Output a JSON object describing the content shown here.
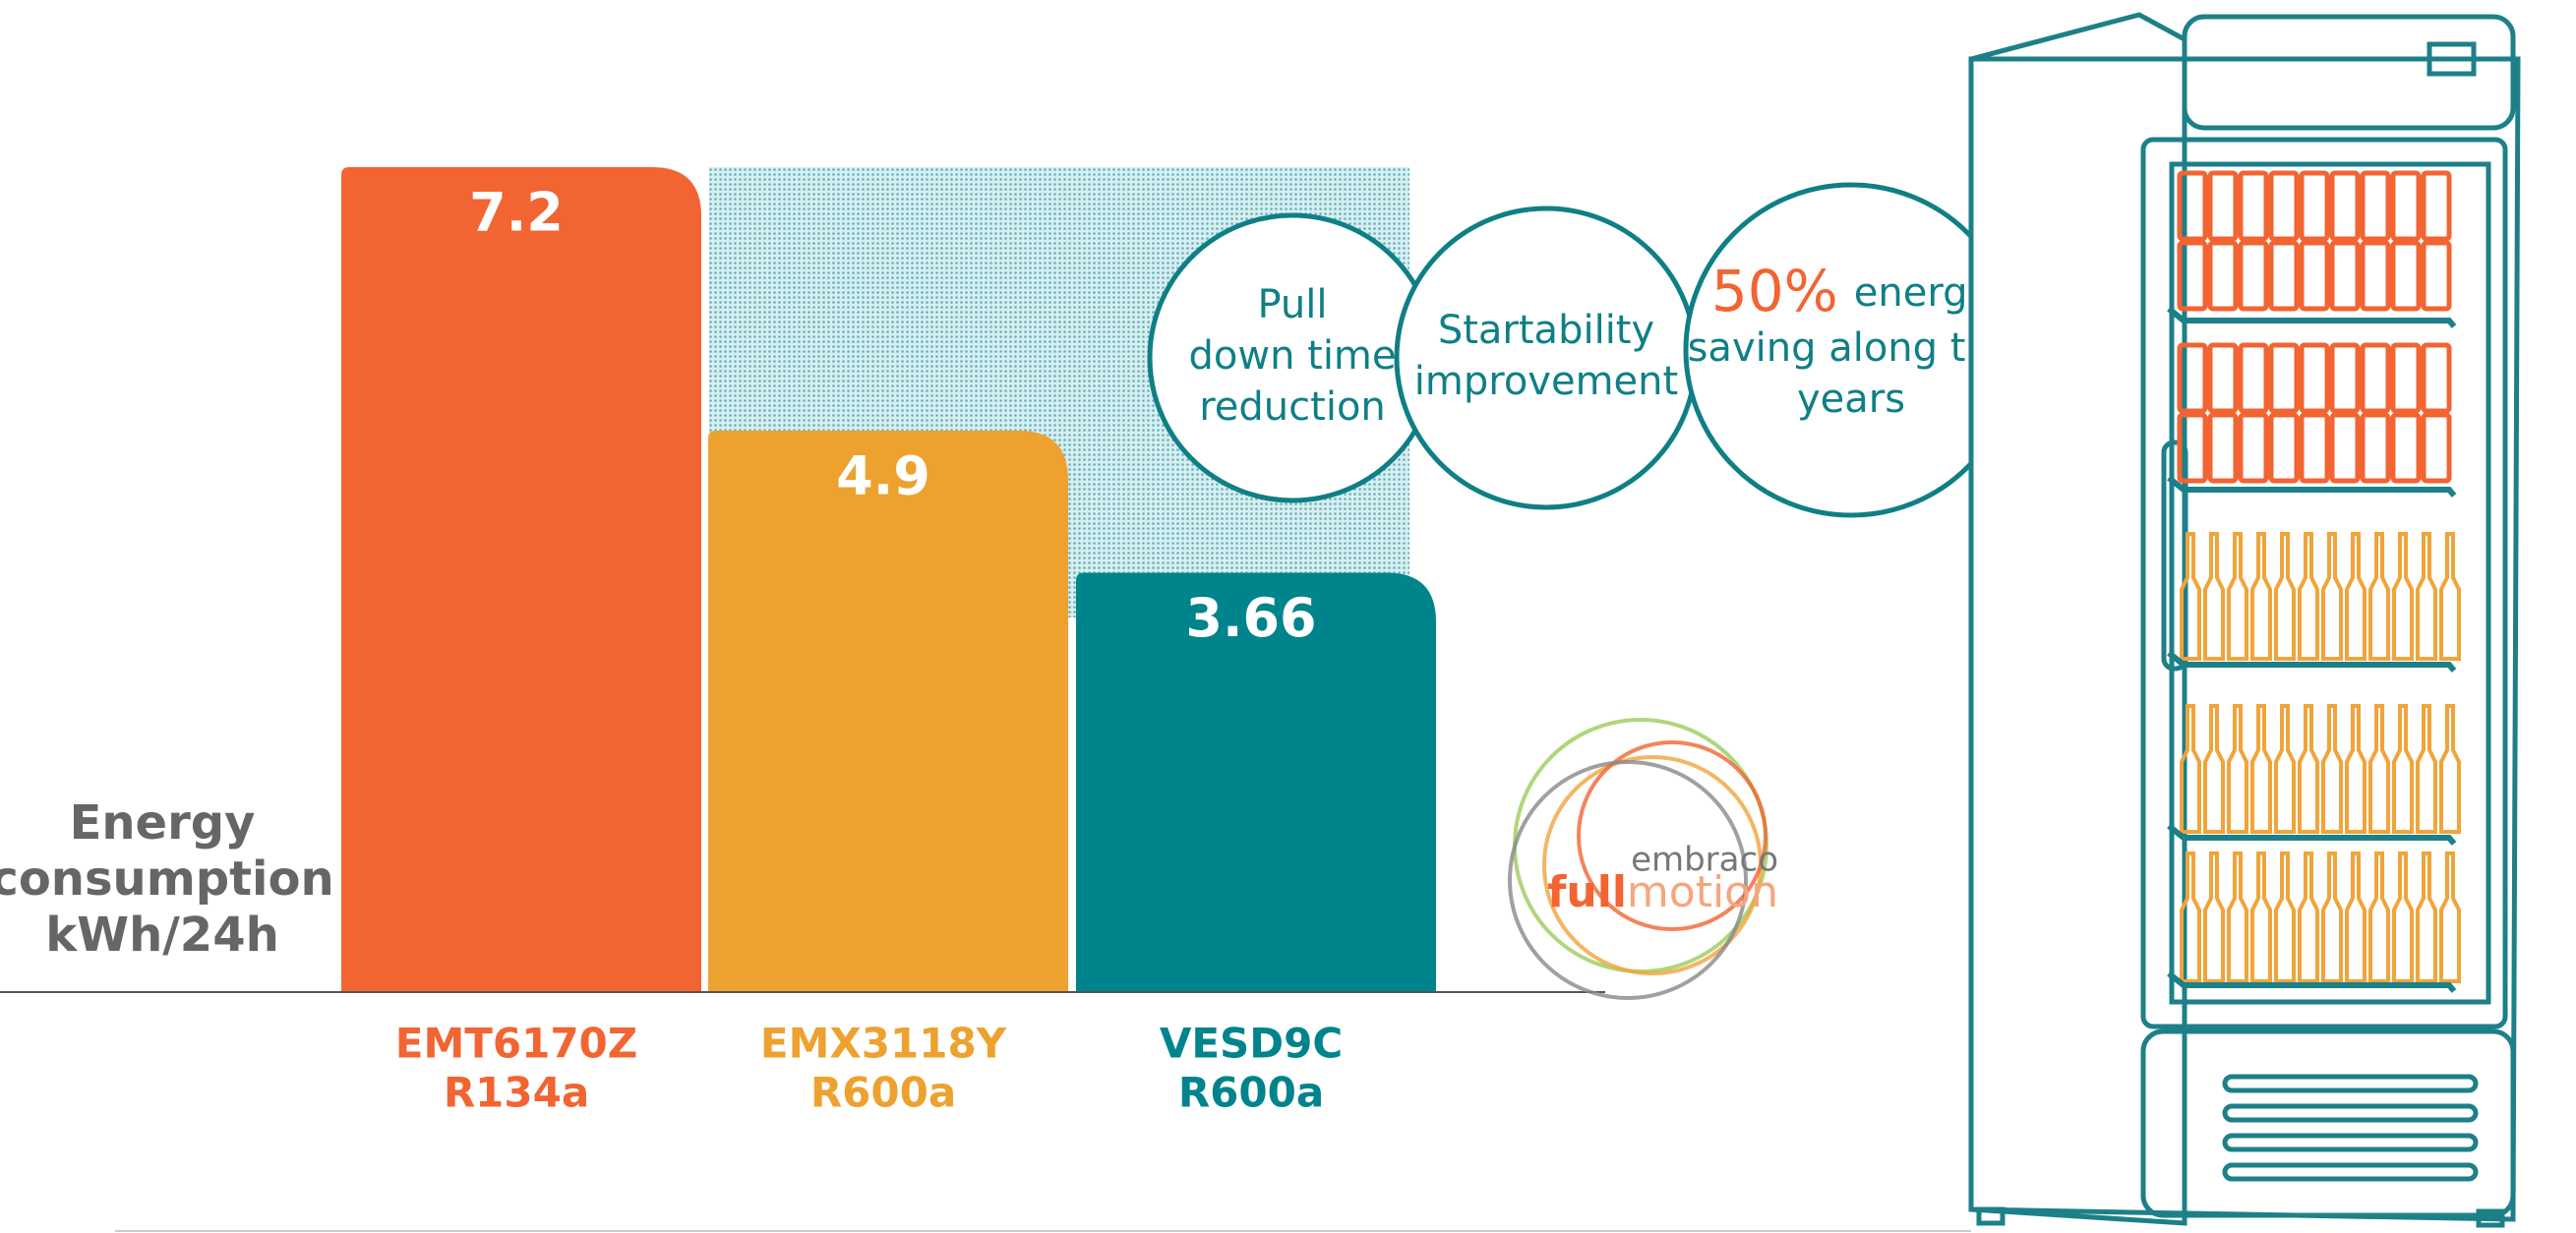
{
  "chart_data": {
    "type": "bar",
    "y_label": [
      "Energy",
      "consumption",
      "kWh/24h"
    ],
    "categories": [
      [
        "EMT6170Z",
        "R134a"
      ],
      [
        "EMX3118Y",
        "R600a"
      ],
      [
        "VESD9C",
        "R600a"
      ]
    ],
    "values": [
      7.2,
      4.9,
      3.66
    ],
    "colors": [
      "#f26432",
      "#eda230",
      "#00848c"
    ],
    "annotations": [
      {
        "lines": [
          "Pull",
          "down time",
          "reduction"
        ]
      },
      {
        "lines": [
          "Startability",
          "improvement"
        ]
      },
      {
        "highlight": "50%",
        "lines": [
          "energy",
          "saving along the",
          "years"
        ]
      }
    ],
    "logo": {
      "top": "embraco",
      "left": "full",
      "right": "motion"
    }
  }
}
